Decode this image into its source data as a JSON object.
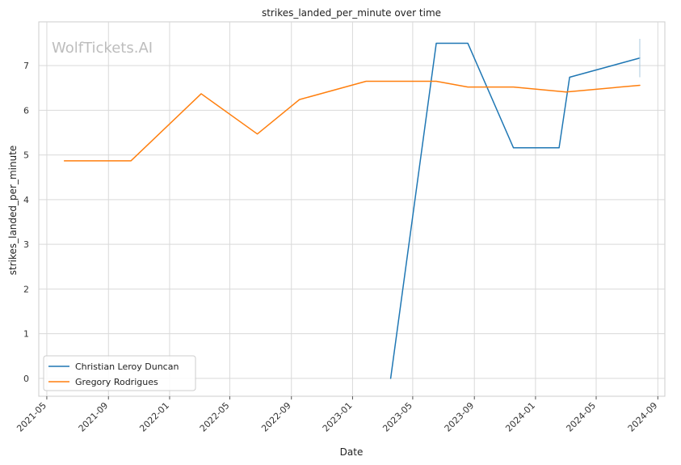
{
  "watermark": "WolfTickets.AI",
  "chart_data": {
    "type": "line",
    "title": "strikes_landed_per_minute over time",
    "xlabel": "Date",
    "ylabel": "strikes_landed_per_minute",
    "x_axis_type": "date",
    "xlim": [
      "2021-04-15",
      "2024-09-15"
    ],
    "ylim": [
      -0.4,
      7.98
    ],
    "x_ticks": [
      "2021-05",
      "2021-09",
      "2022-01",
      "2022-05",
      "2022-09",
      "2023-01",
      "2023-05",
      "2023-09",
      "2024-01",
      "2024-05",
      "2024-09"
    ],
    "y_ticks": [
      0,
      1,
      2,
      3,
      4,
      5,
      6,
      7
    ],
    "grid": true,
    "legend": "lower-left",
    "series": [
      {
        "name": "Christian Leroy Duncan",
        "color": "#1f77b4",
        "points": [
          {
            "x": "2023-03-18",
            "y": 0
          },
          {
            "x": "2023-06-17",
            "y": 7.5
          },
          {
            "x": "2023-08-19",
            "y": 7.5
          },
          {
            "x": "2023-11-18",
            "y": 5.16
          },
          {
            "x": "2024-02-17",
            "y": 5.16
          },
          {
            "x": "2024-03-09",
            "y": 6.74
          },
          {
            "x": "2024-07-27",
            "y": 7.17
          }
        ],
        "error_bar": {
          "x": "2024-07-27",
          "y_low": 6.74,
          "y_high": 7.6
        }
      },
      {
        "name": "Gregory Rodrigues",
        "color": "#ff7f0e",
        "points": [
          {
            "x": "2021-06-05",
            "y": 4.87
          },
          {
            "x": "2021-10-16",
            "y": 4.87
          },
          {
            "x": "2022-03-05",
            "y": 6.37
          },
          {
            "x": "2022-06-25",
            "y": 5.47
          },
          {
            "x": "2022-09-17",
            "y": 6.24
          },
          {
            "x": "2023-01-28",
            "y": 6.65
          },
          {
            "x": "2023-06-17",
            "y": 6.65
          },
          {
            "x": "2023-08-19",
            "y": 6.52
          },
          {
            "x": "2023-11-18",
            "y": 6.52
          },
          {
            "x": "2024-03-02",
            "y": 6.41
          },
          {
            "x": "2024-07-27",
            "y": 6.56
          }
        ]
      }
    ]
  }
}
